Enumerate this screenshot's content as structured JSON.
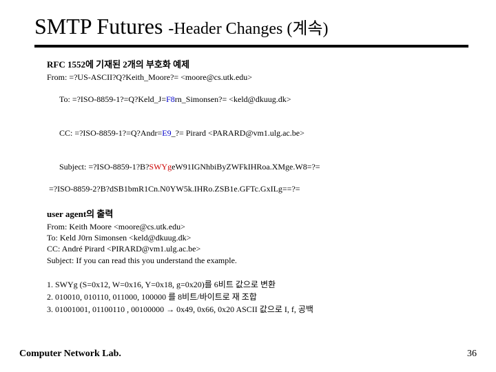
{
  "title_main": "SMTP Futures ",
  "title_sub": "-Header Changes (계속)",
  "sect1_heading": "RFC 1552에 기재된 2개의 부호화 예제",
  "sect1": {
    "l1a": "From: =?US-ASCII?Q?Keith_Moore?= <moore@cs.utk.edu>",
    "l2a": "To: =?ISO-8859-1?=Q?Keld_J=",
    "l2b": "F8",
    "l2c": "rn_Simonsen?= <keld@dkuug.dk>",
    "l3a": "CC: =?ISO-8859-1?=Q?Andr=",
    "l3b": "E9",
    "l3c": "_?= Pirard <PARARD@vm1.ulg.ac.be>",
    "l4a": "Subject: =?ISO-8859-1?B?",
    "l4b": "SWYg",
    "l4c": "eW91IGNhbiByZWFkIHRoa.XMge.W8=?=",
    "l5": " =?ISO-8859-2?B?dSB1bmR1Cn.N0YW5k.IHRo.ZSB1e.GFTc.GxILg==?="
  },
  "sect2_heading": "user agent의 출력",
  "sect2": {
    "l1": "From: Keith Moore <moore@cs.utk.edu>",
    "l2": "To: Keld J0rn Simonsen <keld@dkuug.dk>",
    "l3": "CC: André Pirard <PIRARD@vm1.ulg.ac.be>",
    "l4": "Subject: If you can read this you understand the example."
  },
  "sect3": {
    "l1": "1. SWYg (S=0x12, W=0x16, Y=0x18, g=0x20)를 6비트 값으로 변환",
    "l2": "2.      010010,    010110,     011000,     100000   를 8비트/바이트로 재 조합",
    "l3a": "3.      01001001,    01100110 ,   00100000      ",
    "l3arrow": "→",
    "l3b": "   0x49, 0x66, 0x20  ASCII 값으로 I, f, 공백"
  },
  "footer_lab": "Computer Network Lab.",
  "page_number": "36",
  "colors": {
    "blue": "#0000cc",
    "red": "#cc0000",
    "text": "#000000",
    "bg": "#ffffff"
  }
}
